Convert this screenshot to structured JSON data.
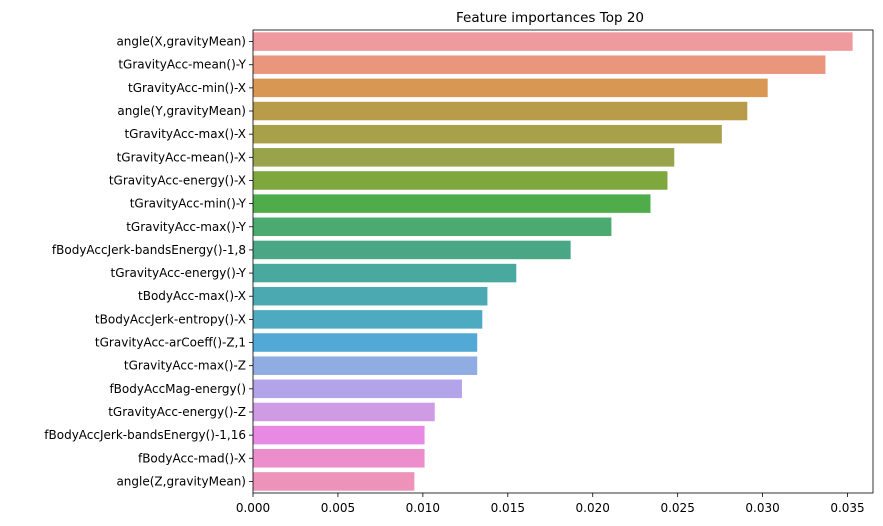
{
  "chart_data": {
    "type": "bar",
    "orientation": "horizontal",
    "title": "Feature importances Top 20",
    "xlabel": "",
    "ylabel": "",
    "xlim": [
      0,
      0.0365
    ],
    "xticks": [
      "0.000",
      "0.005",
      "0.010",
      "0.015",
      "0.020",
      "0.025",
      "0.030",
      "0.035"
    ],
    "grid": false,
    "categories": [
      "angle(X,gravityMean)",
      "tGravityAcc-mean()-Y",
      "tGravityAcc-min()-X",
      "angle(Y,gravityMean)",
      "tGravityAcc-max()-X",
      "tGravityAcc-mean()-X",
      "tGravityAcc-energy()-X",
      "tGravityAcc-min()-Y",
      "tGravityAcc-max()-Y",
      "fBodyAccJerk-bandsEnergy()-1,8",
      "tGravityAcc-energy()-Y",
      "tBodyAcc-max()-X",
      "tBodyAccJerk-entropy()-X",
      "tGravityAcc-arCoeff()-Z,1",
      "tGravityAcc-max()-Z",
      "fBodyAccMag-energy()",
      "tGravityAcc-energy()-Z",
      "fBodyAccJerk-bandsEnergy()-1,16",
      "fBodyAcc-mad()-X",
      "angle(Z,gravityMean)"
    ],
    "values": [
      0.0353,
      0.0337,
      0.0303,
      0.0291,
      0.0276,
      0.0248,
      0.0244,
      0.0234,
      0.0211,
      0.0187,
      0.0155,
      0.0138,
      0.0135,
      0.0132,
      0.0132,
      0.0123,
      0.0107,
      0.0101,
      0.0101,
      0.0095
    ],
    "colors": [
      "#ee9a9f",
      "#e9967d",
      "#d89752",
      "#b99c49",
      "#a9a04a",
      "#98a34a",
      "#7ea73e",
      "#4ead4a",
      "#4aaa6f",
      "#4aa786",
      "#4aa99f",
      "#4baab1",
      "#4dabc1",
      "#52a9d6",
      "#91abe3",
      "#b3a4e9",
      "#cf9be5",
      "#e88ae4",
      "#ec8dcc",
      "#ed92b8"
    ]
  }
}
